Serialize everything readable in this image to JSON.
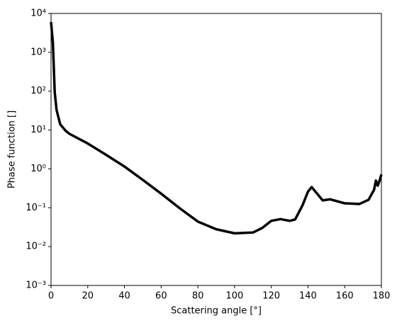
{
  "chart_data": {
    "type": "line",
    "xlabel": "Scattering angle [°]",
    "ylabel": "Phase function []",
    "yscale": "log",
    "x": [
      0,
      1,
      2,
      3,
      5,
      8,
      10,
      20,
      30,
      40,
      50,
      60,
      70,
      80,
      90,
      100,
      110,
      115,
      120,
      125,
      130,
      133,
      137,
      140,
      142,
      145,
      148,
      152,
      160,
      168,
      173,
      176,
      177,
      178,
      179,
      180
    ],
    "series": [
      {
        "color": "#000000",
        "values": [
          6000,
          1800,
          95,
          33,
          14,
          9.5,
          8,
          4.5,
          2.3,
          1.15,
          0.52,
          0.23,
          0.098,
          0.044,
          0.028,
          0.022,
          0.023,
          0.03,
          0.046,
          0.051,
          0.046,
          0.05,
          0.115,
          0.26,
          0.34,
          0.23,
          0.155,
          0.165,
          0.13,
          0.125,
          0.16,
          0.29,
          0.5,
          0.37,
          0.5,
          0.72
        ]
      }
    ],
    "xlim": [
      0,
      180
    ],
    "xticks": [
      0,
      20,
      40,
      60,
      80,
      100,
      120,
      140,
      160,
      180
    ],
    "ylim": [
      0.001,
      10000
    ],
    "yticks": [
      {
        "value": 0.001,
        "label": "10⁻³"
      },
      {
        "value": 0.01,
        "label": "10⁻²"
      },
      {
        "value": 0.1,
        "label": "10⁻¹"
      },
      {
        "value": 1,
        "label": "10⁰"
      },
      {
        "value": 10,
        "label": "10¹"
      },
      {
        "value": 100,
        "label": "10²"
      },
      {
        "value": 1000,
        "label": "10³"
      },
      {
        "value": 10000,
        "label": "10⁴"
      }
    ]
  }
}
